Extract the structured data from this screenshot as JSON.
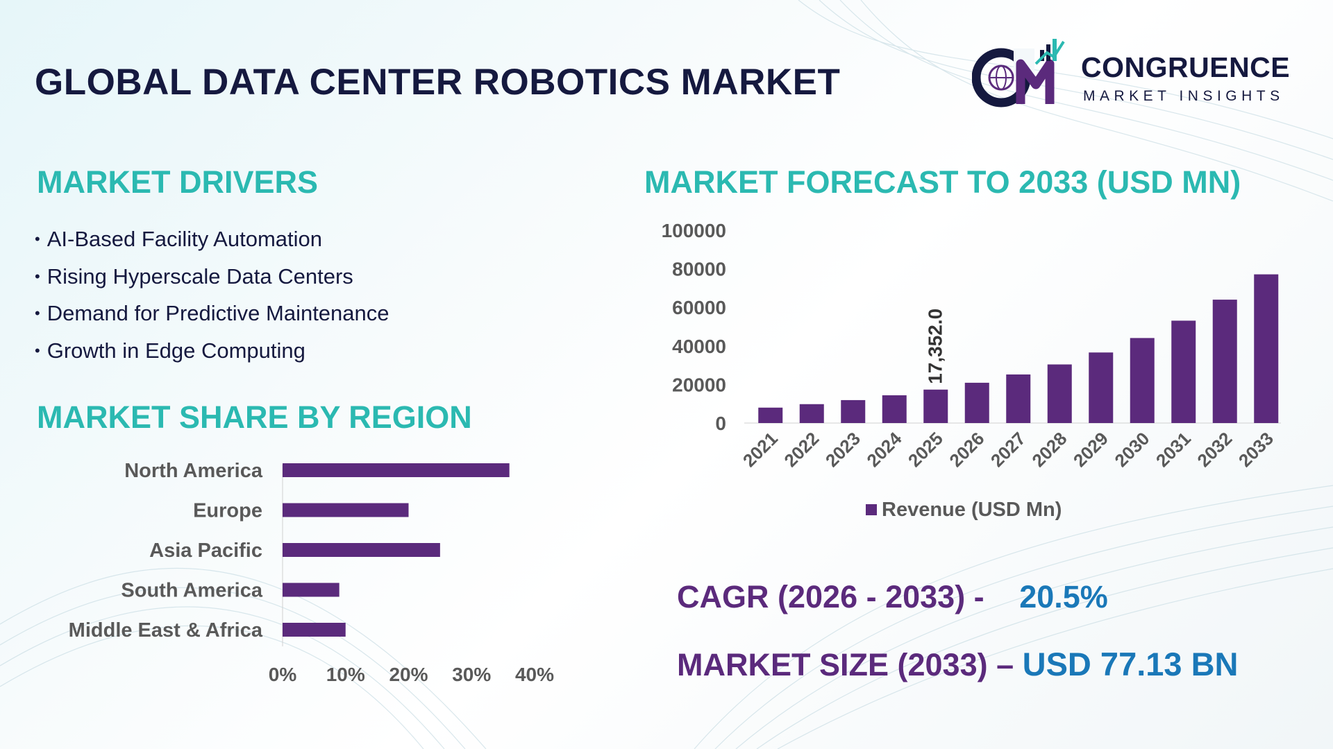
{
  "title": "GLOBAL DATA CENTER ROBOTICS MARKET",
  "logo": {
    "name": "CONGRUENCE",
    "tagline": "MARKET INSIGHTS",
    "icon": "globe-monogram-icon"
  },
  "drivers": {
    "heading": "MARKET DRIVERS",
    "items": [
      "AI-Based Facility Automation",
      "Rising Hyperscale Data Centers",
      "Demand for Predictive Maintenance",
      "Growth in Edge Computing"
    ]
  },
  "region": {
    "heading": "MARKET SHARE BY REGION"
  },
  "forecast": {
    "heading": "MARKET FORECAST TO 2033 (USD MN)"
  },
  "kpis": {
    "cagr_label": "CAGR (2026 - 2033) -",
    "cagr_value": "20.5%",
    "size_label": "MARKET SIZE (2033) –",
    "size_value": "USD 77.13 BN"
  },
  "colors": {
    "bar": "#5b2a7c",
    "heading": "#2bb9b1",
    "title": "#15193f",
    "accent": "#1a78b8",
    "axis_text": "#595959"
  },
  "chart_data": [
    {
      "type": "bar",
      "orientation": "horizontal",
      "categories": [
        "North America",
        "Europe",
        "Asia Pacific",
        "South America",
        "Middle East & Africa"
      ],
      "values": [
        36,
        20,
        25,
        9,
        10
      ],
      "xlim": [
        0,
        40
      ],
      "ticks": [
        "0%",
        "10%",
        "20%",
        "30%",
        "40%"
      ],
      "grid": false
    },
    {
      "type": "bar",
      "categories": [
        "2021",
        "2022",
        "2023",
        "2024",
        "2025",
        "2026",
        "2027",
        "2028",
        "2029",
        "2030",
        "2031",
        "2032",
        "2033"
      ],
      "series": [
        {
          "name": "Revenue (USD Mn)",
          "values": [
            8000,
            9800,
            11900,
            14400,
            17352,
            20900,
            25200,
            30400,
            36600,
            44100,
            53100,
            64000,
            77130
          ]
        }
      ],
      "data_labels": [
        {
          "category": "2025",
          "text": "17,352.0"
        }
      ],
      "ylim": [
        0,
        100000
      ],
      "yticks": [
        "0",
        "20000",
        "40000",
        "60000",
        "80000",
        "100000"
      ],
      "legend": "bottom",
      "grid": false
    }
  ]
}
